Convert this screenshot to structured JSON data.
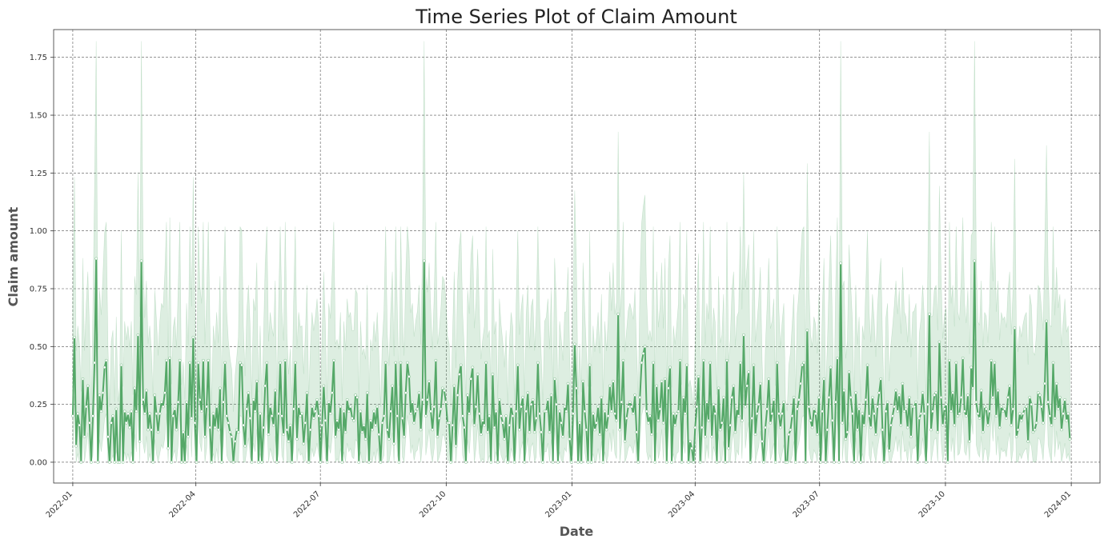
{
  "chart_data": {
    "type": "line",
    "title": "Time Series Plot of Claim Amount",
    "xlabel": "Date",
    "ylabel": "Claim amount",
    "xlim": [
      "2021-12-18",
      "2024-01-22"
    ],
    "ylim": [
      -0.09,
      1.87
    ],
    "x_ticks": [
      "2022-01",
      "2022-04",
      "2022-07",
      "2022-10",
      "2023-01",
      "2023-04",
      "2023-07",
      "2023-10",
      "2024-01"
    ],
    "y_ticks": [
      "0.00",
      "0.25",
      "0.50",
      "0.75",
      "1.00",
      "1.25",
      "1.50",
      "1.75"
    ],
    "grid": true,
    "line_color": "#55a868",
    "band_color": "#55a868",
    "marker_color": "#ffffff",
    "x_start": "2022-01-01",
    "x_end": "2023-12-31",
    "series": [
      {
        "name": "",
        "values": [
          0.2,
          0.54,
          0.07,
          0.21,
          0.16,
          0.0,
          0.36,
          0.11,
          0.24,
          0.33,
          0.17,
          0.0,
          0.2,
          0.43,
          0.88,
          0.0,
          0.29,
          0.22,
          0.3,
          0.41,
          0.44,
          0.11,
          0.0,
          0.17,
          0.2,
          0.0,
          0.23,
          0.0,
          0.0,
          0.42,
          0.0,
          0.22,
          0.17,
          0.21,
          0.15,
          0.22,
          0.0,
          0.32,
          0.22,
          0.55,
          0.09,
          0.87,
          0.27,
          0.21,
          0.31,
          0.14,
          0.21,
          0.14,
          0.0,
          0.29,
          0.21,
          0.13,
          0.21,
          0.26,
          0.24,
          0.3,
          0.44,
          0.06,
          0.45,
          0.0,
          0.2,
          0.23,
          0.14,
          0.26,
          0.44,
          0.0,
          0.13,
          0.0,
          0.26,
          0.11,
          0.43,
          0.19,
          0.54,
          0.17,
          0.0,
          0.43,
          0.27,
          0.22,
          0.44,
          0.11,
          0.24,
          0.44,
          0.15,
          0.0,
          0.21,
          0.15,
          0.24,
          0.14,
          0.32,
          0.0,
          0.26,
          0.43,
          0.2,
          0.17,
          0.13,
          0.11,
          0.0,
          0.09,
          0.14,
          0.13,
          0.43,
          0.42,
          0.16,
          0.07,
          0.23,
          0.3,
          0.19,
          0.0,
          0.27,
          0.22,
          0.35,
          0.0,
          0.21,
          0.0,
          0.15,
          0.33,
          0.43,
          0.12,
          0.24,
          0.2,
          0.16,
          0.31,
          0.0,
          0.21,
          0.43,
          0.2,
          0.12,
          0.44,
          0.14,
          0.09,
          0.16,
          0.0,
          0.23,
          0.43,
          0.1,
          0.24,
          0.2,
          0.21,
          0.08,
          0.17,
          0.3,
          0.0,
          0.14,
          0.24,
          0.19,
          0.22,
          0.27,
          0.2,
          0.0,
          0.16,
          0.33,
          0.18,
          0.0,
          0.26,
          0.21,
          0.3,
          0.44,
          0.11,
          0.18,
          0.14,
          0.24,
          0.0,
          0.22,
          0.13,
          0.27,
          0.22,
          0.24,
          0.19,
          0.18,
          0.29,
          0.28,
          0.0,
          0.22,
          0.13,
          0.16,
          0.1,
          0.3,
          0.0,
          0.18,
          0.14,
          0.22,
          0.16,
          0.24,
          0.12,
          0.0,
          0.17,
          0.2,
          0.43,
          0.14,
          0.1,
          0.22,
          0.33,
          0.08,
          0.43,
          0.2,
          0.0,
          0.43,
          0.19,
          0.11,
          0.3,
          0.43,
          0.37,
          0.21,
          0.26,
          0.17,
          0.22,
          0.23,
          0.3,
          0.14,
          0.27,
          0.87,
          0.2,
          0.27,
          0.35,
          0.22,
          0.14,
          0.24,
          0.44,
          0.11,
          0.19,
          0.23,
          0.32,
          0.31,
          0.26,
          0.17,
          0.17,
          0.0,
          0.16,
          0.33,
          0.07,
          0.29,
          0.38,
          0.42,
          0.2,
          0.15,
          0.0,
          0.29,
          0.21,
          0.36,
          0.41,
          0.16,
          0.24,
          0.38,
          0.21,
          0.12,
          0.18,
          0.16,
          0.43,
          0.13,
          0.2,
          0.0,
          0.38,
          0.15,
          0.22,
          0.0,
          0.27,
          0.2,
          0.17,
          0.1,
          0.2,
          0.0,
          0.16,
          0.24,
          0.2,
          0.0,
          0.22,
          0.42,
          0.14,
          0.24,
          0.28,
          0.0,
          0.22,
          0.3,
          0.13,
          0.25,
          0.27,
          0.13,
          0.19,
          0.43,
          0.21,
          0.13,
          0.0,
          0.22,
          0.22,
          0.27,
          0.13,
          0.29,
          0.0,
          0.36,
          0.25,
          0.0,
          0.22,
          0.17,
          0.11,
          0.24,
          0.22,
          0.34,
          0.1,
          0.0,
          0.21,
          0.51,
          0.32,
          0.0,
          0.17,
          0.0,
          0.35,
          0.22,
          0.14,
          0.0,
          0.42,
          0.0,
          0.21,
          0.14,
          0.17,
          0.24,
          0.12,
          0.28,
          0.0,
          0.22,
          0.14,
          0.2,
          0.33,
          0.22,
          0.35,
          0.21,
          0.18,
          0.64,
          0.14,
          0.26,
          0.44,
          0.09,
          0.19,
          0.24,
          0.26,
          0.24,
          0.21,
          0.29,
          0.13,
          0.0,
          0.28,
          0.43,
          0.47,
          0.5,
          0.22,
          0.17,
          0.2,
          0.12,
          0.43,
          0.0,
          0.33,
          0.18,
          0.23,
          0.35,
          0.17,
          0.36,
          0.0,
          0.32,
          0.41,
          0.0,
          0.21,
          0.16,
          0.21,
          0.22,
          0.44,
          0.0,
          0.28,
          0.21,
          0.42,
          0.0,
          0.09,
          0.06,
          0.0,
          0.15,
          0.24,
          0.37,
          0.0,
          0.15,
          0.44,
          0.11,
          0.26,
          0.18,
          0.43,
          0.11,
          0.25,
          0.21,
          0.0,
          0.32,
          0.14,
          0.17,
          0.28,
          0.0,
          0.44,
          0.06,
          0.16,
          0.28,
          0.33,
          0.13,
          0.23,
          0.2,
          0.43,
          0.18,
          0.55,
          0.24,
          0.33,
          0.39,
          0.0,
          0.19,
          0.42,
          0.12,
          0.21,
          0.25,
          0.34,
          0.09,
          0.0,
          0.15,
          0.23,
          0.36,
          0.17,
          0.21,
          0.27,
          0.0,
          0.43,
          0.21,
          0.15,
          0.21,
          0.26,
          0.0,
          0.0,
          0.12,
          0.14,
          0.2,
          0.28,
          0.0,
          0.23,
          0.27,
          0.34,
          0.42,
          0.43,
          0.0,
          0.57,
          0.24,
          0.18,
          0.15,
          0.23,
          0.21,
          0.12,
          0.28,
          0.0,
          0.22,
          0.36,
          0.0,
          0.14,
          0.28,
          0.41,
          0.18,
          0.0,
          0.26,
          0.45,
          0.0,
          0.86,
          0.17,
          0.31,
          0.1,
          0.13,
          0.39,
          0.28,
          0.21,
          0.0,
          0.3,
          0.14,
          0.23,
          0.0,
          0.21,
          0.16,
          0.27,
          0.42,
          0.2,
          0.15,
          0.28,
          0.21,
          0.12,
          0.24,
          0.3,
          0.36,
          0.14,
          0.0,
          0.22,
          0.26,
          0.05,
          0.16,
          0.2,
          0.24,
          0.31,
          0.22,
          0.29,
          0.16,
          0.34,
          0.22,
          0.23,
          0.15,
          0.28,
          0.11,
          0.24,
          0.24,
          0.26,
          0.0,
          0.19,
          0.21,
          0.3,
          0.21,
          0.0,
          0.25,
          0.64,
          0.14,
          0.22,
          0.29,
          0.3,
          0.13,
          0.52,
          0.28,
          0.16,
          0.23,
          0.25,
          0.0,
          0.44,
          0.22,
          0.3,
          0.16,
          0.43,
          0.2,
          0.21,
          0.28,
          0.45,
          0.22,
          0.2,
          0.29,
          0.09,
          0.41,
          0.32,
          0.87,
          0.26,
          0.21,
          0.19,
          0.31,
          0.13,
          0.24,
          0.23,
          0.16,
          0.22,
          0.44,
          0.28,
          0.43,
          0.2,
          0.31,
          0.15,
          0.24,
          0.22,
          0.23,
          0.19,
          0.28,
          0.33,
          0.16,
          0.23,
          0.58,
          0.11,
          0.14,
          0.21,
          0.18,
          0.21,
          0.23,
          0.24,
          0.09,
          0.28,
          0.25,
          0.13,
          0.14,
          0.17,
          0.3,
          0.29,
          0.24,
          0.17,
          0.34,
          0.61,
          0.26,
          0.2,
          0.16,
          0.43,
          0.19,
          0.34,
          0.23,
          0.28,
          0.14,
          0.21,
          0.27,
          0.18,
          0.21,
          0.1
        ]
      }
    ]
  }
}
